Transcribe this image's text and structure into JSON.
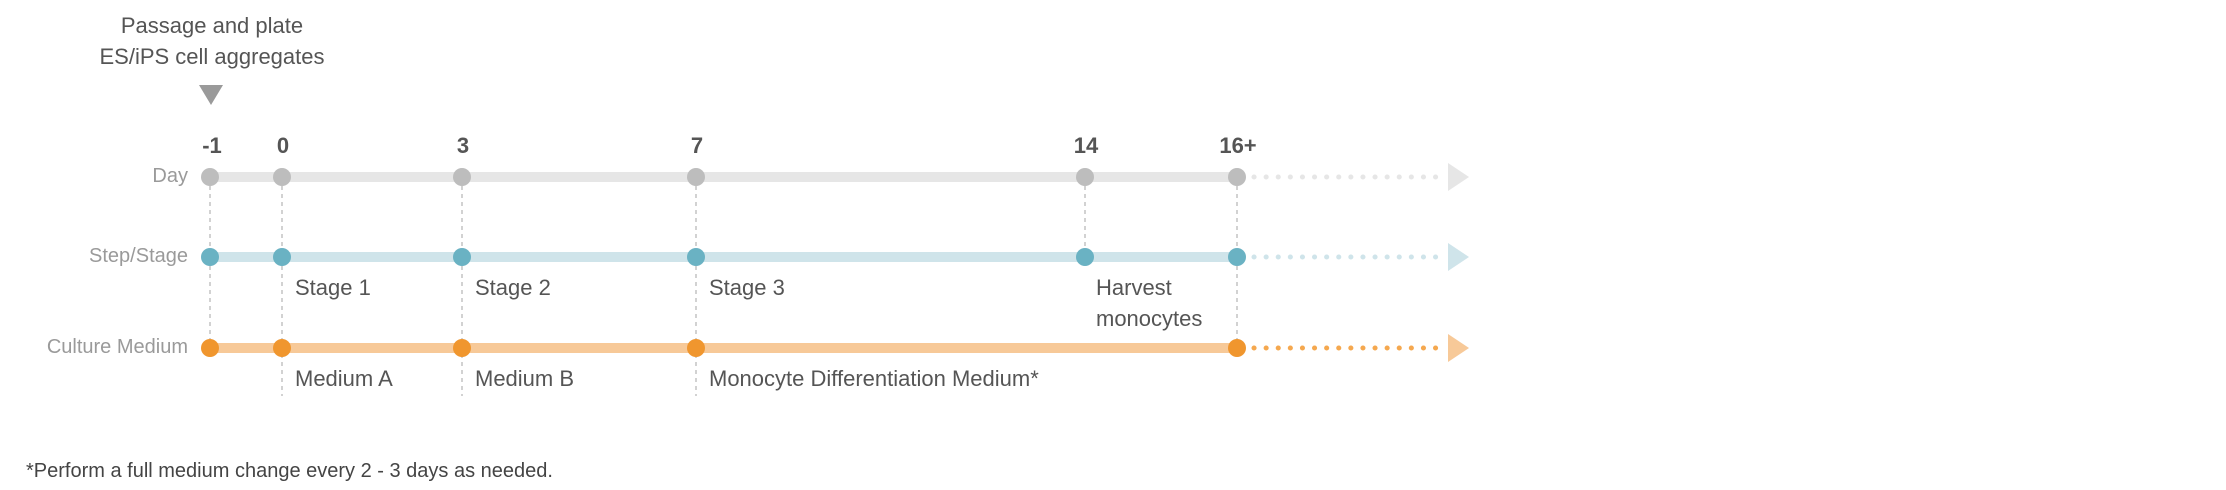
{
  "header": {
    "line1": "Passage and plate",
    "line2": "ES/iPS cell aggregates"
  },
  "days": [
    "-1",
    "0",
    "3",
    "7",
    "14",
    "16+"
  ],
  "rows": {
    "day": {
      "label": "Day",
      "color": "#bdbdbd",
      "line_color": "#e6e6e6"
    },
    "step": {
      "label": "Step/Stage",
      "color": "#6ab2c3",
      "line_color": "#cfe4ea"
    },
    "medium": {
      "label": "Culture Medium",
      "color": "#f0962e",
      "line_color": "#f7c998"
    }
  },
  "stages": [
    "Stage 1",
    "Stage 2",
    "Stage 3",
    "Harvest",
    "monocytes"
  ],
  "media": [
    "Medium A",
    "Medium B",
    "Monocyte Differentiation Medium*"
  ],
  "footnote": "*Perform a full medium change every 2 - 3 days as needed."
}
